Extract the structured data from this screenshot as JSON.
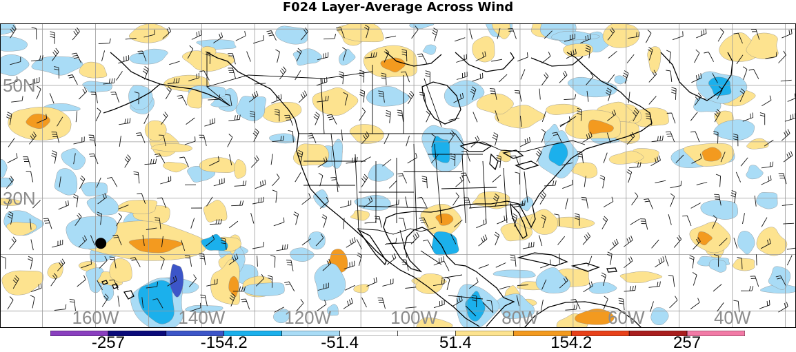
{
  "title": "F024 Layer-Average Across Wind",
  "lat_labels": [
    {
      "text": "50N",
      "lat": 50
    },
    {
      "text": "30N",
      "lat": 30
    }
  ],
  "lon_labels": [
    {
      "text": "160W",
      "lon": -160
    },
    {
      "text": "140W",
      "lon": -140
    },
    {
      "text": "120W",
      "lon": -120
    },
    {
      "text": "100W",
      "lon": -100
    },
    {
      "text": "80W",
      "lon": -80
    },
    {
      "text": "60W",
      "lon": -60
    },
    {
      "text": "40W",
      "lon": -40
    }
  ],
  "colorbar": {
    "colors": [
      "#8a3fbf",
      "#0a0a7a",
      "#3c55c8",
      "#1bb0ec",
      "#a9dcf6",
      "#ffffff",
      "#ffffff",
      "#fde38f",
      "#f39a1f",
      "#e8411a",
      "#a91e1e",
      "#f27aa6"
    ],
    "labels": [
      "-257",
      "-154.2",
      "-51.4",
      "51.4",
      "154.2",
      "257"
    ]
  },
  "map": {
    "lon_range": [
      -178,
      -28
    ],
    "lat_range": [
      7,
      61
    ],
    "grid_spacing_deg": 10,
    "anomaly_colors": {
      "light_blue": "#a9dcf6",
      "mid_blue": "#1bb0ec",
      "dark_blue": "#3c55c8",
      "light_orange": "#fde38f",
      "orange": "#f39a1f",
      "red": "#e8411a"
    },
    "marker": {
      "lon": -159,
      "lat": 22
    }
  }
}
